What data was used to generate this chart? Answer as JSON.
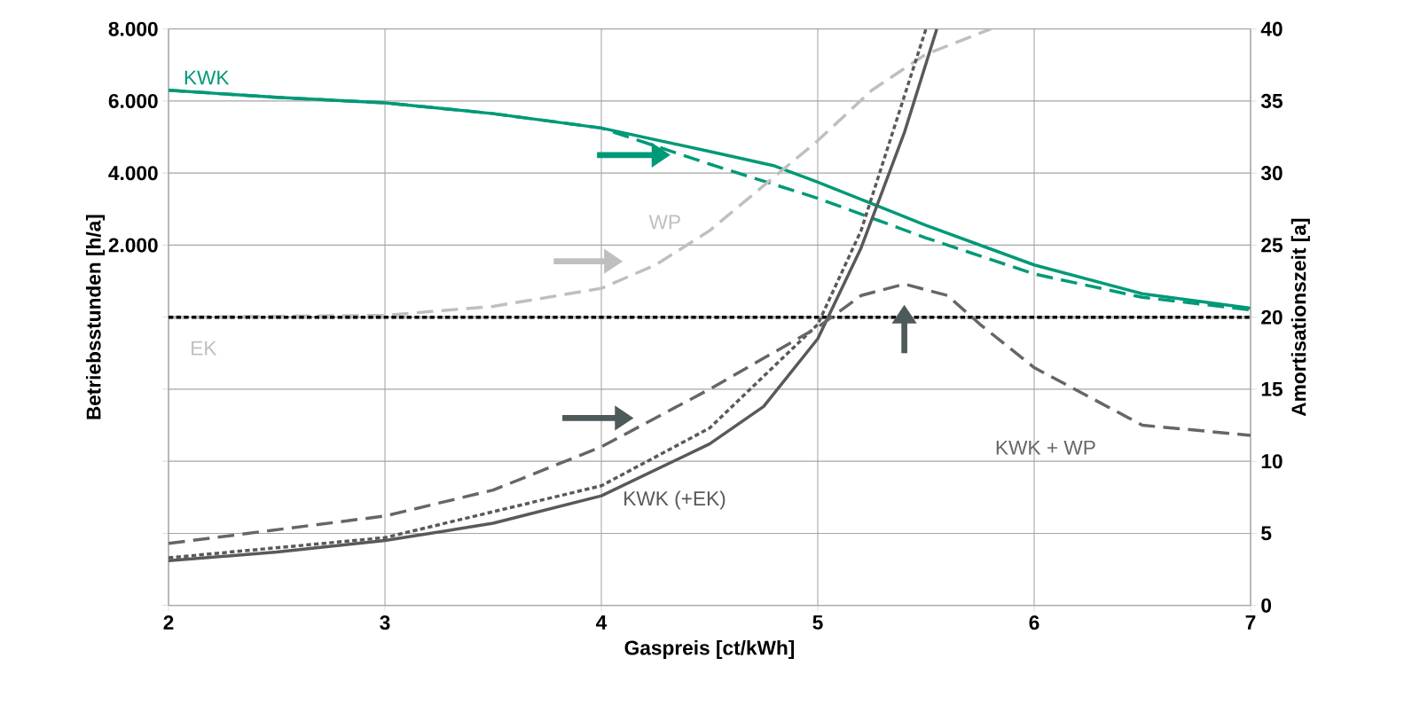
{
  "chart_data": {
    "type": "line",
    "xlabel": "Gaspreis [ct/kWh]",
    "ylabel": "Betriebsstunden [h/a]",
    "y2label": "Amortisationszeit [a]",
    "xlim": [
      2,
      7
    ],
    "xticks": [
      2,
      3,
      4,
      5,
      6,
      7
    ],
    "ylim": [
      -8000,
      8000
    ],
    "yticks": [
      {
        "value": -8000,
        "label": null
      },
      {
        "value": -6000,
        "label": null
      },
      {
        "value": -4000,
        "label": null
      },
      {
        "value": -2000,
        "label": null
      },
      {
        "value": 0,
        "label": null
      },
      {
        "value": 2000,
        "label": "2.000"
      },
      {
        "value": 4000,
        "label": "4.000"
      },
      {
        "value": 6000,
        "label": "6.000"
      },
      {
        "value": 8000,
        "label": "8.000"
      }
    ],
    "y2lim": [
      0,
      40
    ],
    "y2ticks": [
      0,
      5,
      10,
      15,
      20,
      25,
      30,
      35,
      40
    ],
    "grid": true,
    "series": [
      {
        "name": "KWK",
        "color": "#009977",
        "line_style": "solid",
        "x": [
          2,
          2.5,
          3,
          3.5,
          4,
          4.5,
          4.8,
          5,
          5.5,
          6,
          6.5,
          7
        ],
        "values": [
          6300,
          6100,
          5950,
          5650,
          5250,
          4600,
          4200,
          3750,
          2550,
          1450,
          650,
          250
        ]
      },
      {
        "color": "#009977",
        "line_style": "dashed",
        "x": [
          2,
          2.5,
          3,
          3.5,
          4,
          4.25,
          4.5,
          5,
          5.5,
          6,
          6.5,
          7
        ],
        "values": [
          6300,
          6100,
          5950,
          5650,
          5250,
          4750,
          4250,
          3300,
          2200,
          1200,
          550,
          200
        ]
      },
      {
        "name": "WP",
        "color": "#bfbfbf",
        "line_style": "dashed",
        "x": [
          2,
          3,
          3.5,
          4,
          4.25,
          4.5,
          4.75,
          5,
          5.25,
          5.5,
          5.8
        ],
        "values": [
          0,
          50,
          300,
          800,
          1450,
          2400,
          3650,
          4900,
          6300,
          7300,
          8000
        ]
      },
      {
        "name": "EK",
        "color": "#bfbfbf",
        "line_style": "dashed",
        "x": [
          2,
          7
        ],
        "values": [
          0,
          0
        ]
      },
      {
        "color": "#000000",
        "line_style": "dotted",
        "x": [
          2,
          7
        ],
        "values": [
          0,
          0
        ]
      },
      {
        "name": "KWK (+EK)",
        "color": "#595959",
        "line_style": "solid",
        "axis": "y2",
        "x": [
          2,
          2.5,
          3,
          3.5,
          4,
          4.5,
          4.75,
          5,
          5.2,
          5.4,
          5.55
        ],
        "values": [
          3.1,
          3.7,
          4.5,
          5.7,
          7.6,
          11.2,
          13.8,
          18.5,
          24.8,
          32.8,
          40
        ]
      },
      {
        "color": "#595959",
        "line_style": "dotted",
        "axis": "y2",
        "x": [
          2,
          3,
          4,
          4.5,
          5,
          5.2,
          5.35,
          5.5
        ],
        "values": [
          3.3,
          4.7,
          8.3,
          12.3,
          19.5,
          26,
          33,
          40
        ]
      },
      {
        "name": "KWK + WP",
        "color": "#666666",
        "line_style": "dashed",
        "axis": "y2",
        "x": [
          2,
          3,
          3.5,
          4,
          4.5,
          5,
          5.2,
          5.4,
          5.6,
          5.75,
          6,
          6.5,
          7
        ],
        "values": [
          4.3,
          6.2,
          8,
          11,
          15,
          19.3,
          21.5,
          22.3,
          21.5,
          19.5,
          16.5,
          12.5,
          11.8
        ]
      }
    ]
  }
}
